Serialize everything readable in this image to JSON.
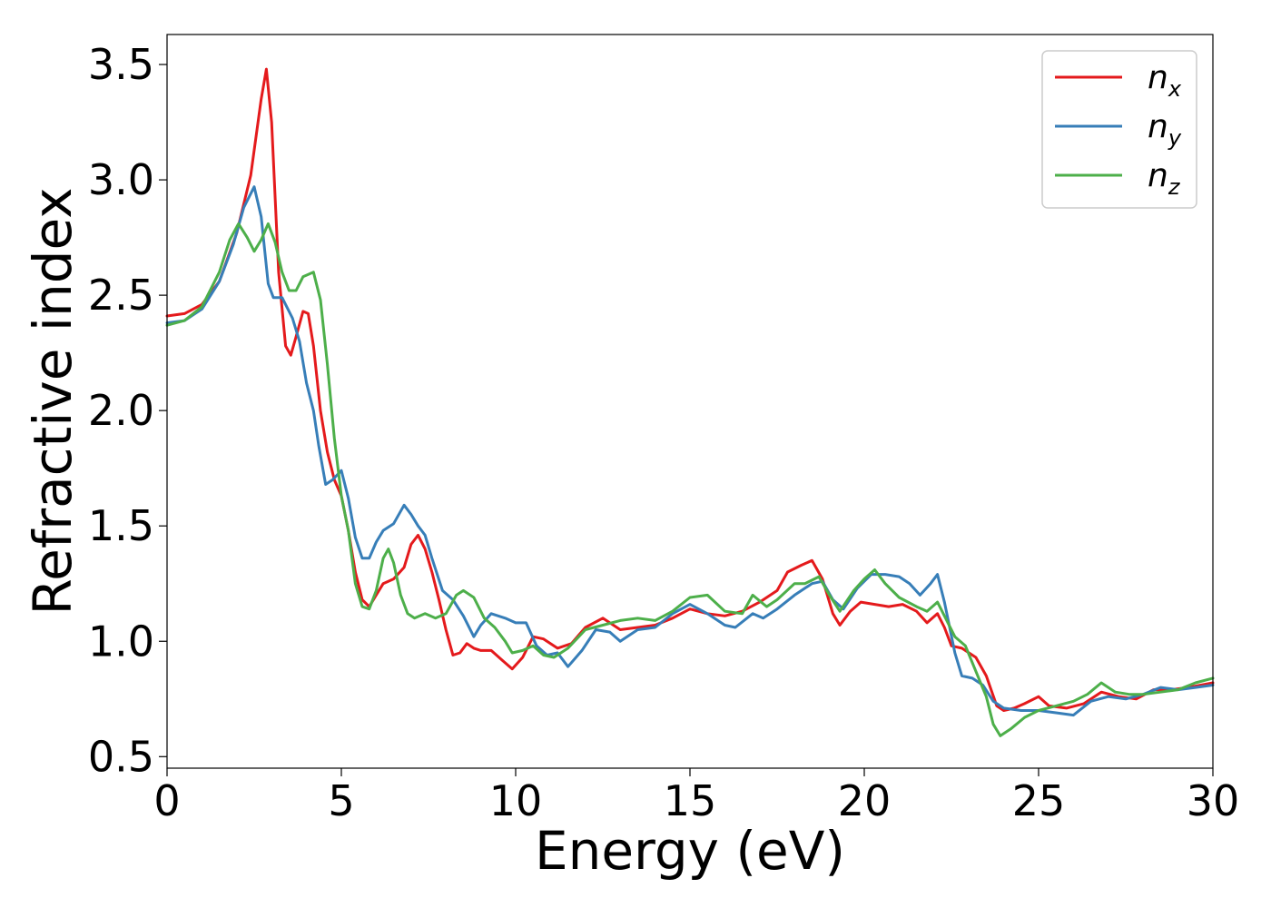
{
  "chart_data": {
    "type": "line",
    "xlabel": "Energy (eV)",
    "ylabel": "Refractive index",
    "xlim": [
      0,
      30
    ],
    "ylim": [
      0.45,
      3.63
    ],
    "x_ticks": [
      "0",
      "5",
      "10",
      "15",
      "20",
      "25",
      "30"
    ],
    "y_ticks": [
      "0.5",
      "1.0",
      "1.5",
      "2.0",
      "2.5",
      "3.0",
      "3.5"
    ],
    "grid": false,
    "legend_position": "top-right",
    "series": [
      {
        "name": "n",
        "subscript": "x",
        "color": "#e41a1c",
        "points": [
          [
            0,
            2.41
          ],
          [
            0.5,
            2.42
          ],
          [
            1.0,
            2.46
          ],
          [
            1.5,
            2.56
          ],
          [
            2.0,
            2.77
          ],
          [
            2.4,
            3.02
          ],
          [
            2.7,
            3.35
          ],
          [
            2.85,
            3.48
          ],
          [
            3.0,
            3.25
          ],
          [
            3.2,
            2.6
          ],
          [
            3.4,
            2.28
          ],
          [
            3.55,
            2.24
          ],
          [
            3.7,
            2.32
          ],
          [
            3.9,
            2.43
          ],
          [
            4.05,
            2.42
          ],
          [
            4.2,
            2.28
          ],
          [
            4.4,
            2.0
          ],
          [
            4.6,
            1.82
          ],
          [
            4.8,
            1.7
          ],
          [
            5.0,
            1.63
          ],
          [
            5.2,
            1.48
          ],
          [
            5.4,
            1.3
          ],
          [
            5.6,
            1.18
          ],
          [
            5.8,
            1.15
          ],
          [
            6.0,
            1.2
          ],
          [
            6.2,
            1.25
          ],
          [
            6.5,
            1.27
          ],
          [
            6.8,
            1.32
          ],
          [
            7.0,
            1.42
          ],
          [
            7.2,
            1.46
          ],
          [
            7.4,
            1.4
          ],
          [
            7.6,
            1.3
          ],
          [
            7.8,
            1.18
          ],
          [
            8.0,
            1.05
          ],
          [
            8.2,
            0.94
          ],
          [
            8.4,
            0.95
          ],
          [
            8.6,
            0.99
          ],
          [
            8.8,
            0.97
          ],
          [
            9.0,
            0.96
          ],
          [
            9.3,
            0.96
          ],
          [
            9.6,
            0.92
          ],
          [
            9.9,
            0.88
          ],
          [
            10.2,
            0.93
          ],
          [
            10.5,
            1.02
          ],
          [
            10.8,
            1.01
          ],
          [
            11.2,
            0.97
          ],
          [
            11.6,
            0.99
          ],
          [
            12.0,
            1.06
          ],
          [
            12.5,
            1.1
          ],
          [
            13.0,
            1.05
          ],
          [
            13.5,
            1.06
          ],
          [
            14.0,
            1.07
          ],
          [
            14.5,
            1.1
          ],
          [
            15.0,
            1.14
          ],
          [
            15.5,
            1.12
          ],
          [
            16.0,
            1.11
          ],
          [
            16.5,
            1.13
          ],
          [
            17.0,
            1.17
          ],
          [
            17.5,
            1.22
          ],
          [
            17.8,
            1.3
          ],
          [
            18.2,
            1.33
          ],
          [
            18.5,
            1.35
          ],
          [
            18.8,
            1.27
          ],
          [
            19.1,
            1.12
          ],
          [
            19.3,
            1.07
          ],
          [
            19.6,
            1.13
          ],
          [
            19.9,
            1.17
          ],
          [
            20.3,
            1.16
          ],
          [
            20.7,
            1.15
          ],
          [
            21.1,
            1.16
          ],
          [
            21.5,
            1.13
          ],
          [
            21.8,
            1.08
          ],
          [
            22.1,
            1.12
          ],
          [
            22.3,
            1.06
          ],
          [
            22.5,
            0.98
          ],
          [
            22.8,
            0.97
          ],
          [
            23.2,
            0.93
          ],
          [
            23.5,
            0.85
          ],
          [
            23.8,
            0.72
          ],
          [
            24.0,
            0.7
          ],
          [
            24.3,
            0.71
          ],
          [
            24.6,
            0.73
          ],
          [
            25.0,
            0.76
          ],
          [
            25.3,
            0.72
          ],
          [
            25.8,
            0.71
          ],
          [
            26.3,
            0.73
          ],
          [
            26.8,
            0.78
          ],
          [
            27.3,
            0.76
          ],
          [
            27.8,
            0.75
          ],
          [
            28.3,
            0.79
          ],
          [
            28.8,
            0.79
          ],
          [
            29.3,
            0.8
          ],
          [
            30.0,
            0.82
          ]
        ]
      },
      {
        "name": "n",
        "subscript": "y",
        "color": "#377eb8",
        "points": [
          [
            0,
            2.38
          ],
          [
            0.5,
            2.39
          ],
          [
            1.0,
            2.44
          ],
          [
            1.5,
            2.56
          ],
          [
            1.9,
            2.72
          ],
          [
            2.2,
            2.88
          ],
          [
            2.5,
            2.97
          ],
          [
            2.7,
            2.84
          ],
          [
            2.9,
            2.55
          ],
          [
            3.05,
            2.49
          ],
          [
            3.3,
            2.49
          ],
          [
            3.6,
            2.4
          ],
          [
            3.8,
            2.3
          ],
          [
            4.0,
            2.12
          ],
          [
            4.2,
            2.0
          ],
          [
            4.35,
            1.85
          ],
          [
            4.55,
            1.68
          ],
          [
            4.75,
            1.7
          ],
          [
            5.0,
            1.74
          ],
          [
            5.2,
            1.62
          ],
          [
            5.4,
            1.45
          ],
          [
            5.6,
            1.36
          ],
          [
            5.8,
            1.36
          ],
          [
            6.0,
            1.43
          ],
          [
            6.2,
            1.48
          ],
          [
            6.5,
            1.51
          ],
          [
            6.8,
            1.59
          ],
          [
            7.0,
            1.55
          ],
          [
            7.2,
            1.5
          ],
          [
            7.4,
            1.46
          ],
          [
            7.6,
            1.36
          ],
          [
            7.9,
            1.22
          ],
          [
            8.2,
            1.18
          ],
          [
            8.5,
            1.11
          ],
          [
            8.8,
            1.02
          ],
          [
            9.0,
            1.07
          ],
          [
            9.3,
            1.12
          ],
          [
            9.7,
            1.1
          ],
          [
            10.0,
            1.08
          ],
          [
            10.3,
            1.08
          ],
          [
            10.6,
            0.98
          ],
          [
            10.9,
            0.94
          ],
          [
            11.2,
            0.95
          ],
          [
            11.5,
            0.89
          ],
          [
            11.9,
            0.96
          ],
          [
            12.3,
            1.05
          ],
          [
            12.7,
            1.04
          ],
          [
            13.0,
            1.0
          ],
          [
            13.5,
            1.05
          ],
          [
            14.0,
            1.06
          ],
          [
            14.5,
            1.12
          ],
          [
            15.0,
            1.16
          ],
          [
            15.5,
            1.12
          ],
          [
            16.0,
            1.07
          ],
          [
            16.3,
            1.06
          ],
          [
            16.8,
            1.12
          ],
          [
            17.1,
            1.1
          ],
          [
            17.5,
            1.14
          ],
          [
            18.0,
            1.2
          ],
          [
            18.5,
            1.25
          ],
          [
            18.8,
            1.26
          ],
          [
            19.1,
            1.18
          ],
          [
            19.4,
            1.14
          ],
          [
            19.8,
            1.23
          ],
          [
            20.2,
            1.29
          ],
          [
            20.6,
            1.29
          ],
          [
            21.0,
            1.28
          ],
          [
            21.3,
            1.25
          ],
          [
            21.6,
            1.2
          ],
          [
            21.9,
            1.25
          ],
          [
            22.1,
            1.29
          ],
          [
            22.3,
            1.17
          ],
          [
            22.6,
            0.95
          ],
          [
            22.8,
            0.85
          ],
          [
            23.1,
            0.84
          ],
          [
            23.4,
            0.81
          ],
          [
            23.7,
            0.74
          ],
          [
            24.0,
            0.71
          ],
          [
            24.5,
            0.7
          ],
          [
            25.0,
            0.7
          ],
          [
            25.5,
            0.69
          ],
          [
            26.0,
            0.68
          ],
          [
            26.5,
            0.74
          ],
          [
            27.0,
            0.76
          ],
          [
            27.5,
            0.75
          ],
          [
            28.0,
            0.77
          ],
          [
            28.5,
            0.8
          ],
          [
            29.0,
            0.79
          ],
          [
            29.5,
            0.8
          ],
          [
            30.0,
            0.81
          ]
        ]
      },
      {
        "name": "n",
        "subscript": "z",
        "color": "#4daf4a",
        "points": [
          [
            0,
            2.37
          ],
          [
            0.5,
            2.39
          ],
          [
            1.0,
            2.45
          ],
          [
            1.5,
            2.6
          ],
          [
            1.8,
            2.74
          ],
          [
            2.05,
            2.81
          ],
          [
            2.3,
            2.75
          ],
          [
            2.5,
            2.69
          ],
          [
            2.7,
            2.74
          ],
          [
            2.9,
            2.81
          ],
          [
            3.1,
            2.73
          ],
          [
            3.3,
            2.6
          ],
          [
            3.5,
            2.52
          ],
          [
            3.7,
            2.52
          ],
          [
            3.9,
            2.58
          ],
          [
            4.2,
            2.6
          ],
          [
            4.4,
            2.48
          ],
          [
            4.6,
            2.2
          ],
          [
            4.8,
            1.88
          ],
          [
            5.0,
            1.63
          ],
          [
            5.2,
            1.48
          ],
          [
            5.4,
            1.25
          ],
          [
            5.6,
            1.15
          ],
          [
            5.8,
            1.14
          ],
          [
            6.0,
            1.22
          ],
          [
            6.2,
            1.36
          ],
          [
            6.35,
            1.4
          ],
          [
            6.5,
            1.34
          ],
          [
            6.7,
            1.2
          ],
          [
            6.9,
            1.12
          ],
          [
            7.1,
            1.1
          ],
          [
            7.4,
            1.12
          ],
          [
            7.7,
            1.1
          ],
          [
            8.0,
            1.12
          ],
          [
            8.3,
            1.2
          ],
          [
            8.5,
            1.22
          ],
          [
            8.8,
            1.19
          ],
          [
            9.1,
            1.1
          ],
          [
            9.4,
            1.06
          ],
          [
            9.7,
            1.0
          ],
          [
            9.9,
            0.95
          ],
          [
            10.2,
            0.96
          ],
          [
            10.5,
            0.98
          ],
          [
            10.8,
            0.94
          ],
          [
            11.1,
            0.93
          ],
          [
            11.5,
            0.97
          ],
          [
            12.0,
            1.05
          ],
          [
            12.5,
            1.07
          ],
          [
            13.0,
            1.09
          ],
          [
            13.5,
            1.1
          ],
          [
            14.0,
            1.09
          ],
          [
            14.5,
            1.13
          ],
          [
            15.0,
            1.19
          ],
          [
            15.5,
            1.2
          ],
          [
            16.0,
            1.13
          ],
          [
            16.5,
            1.12
          ],
          [
            16.8,
            1.2
          ],
          [
            17.2,
            1.15
          ],
          [
            17.5,
            1.18
          ],
          [
            18.0,
            1.25
          ],
          [
            18.3,
            1.25
          ],
          [
            18.7,
            1.28
          ],
          [
            19.0,
            1.2
          ],
          [
            19.3,
            1.13
          ],
          [
            19.7,
            1.22
          ],
          [
            20.0,
            1.27
          ],
          [
            20.3,
            1.31
          ],
          [
            20.6,
            1.25
          ],
          [
            21.0,
            1.19
          ],
          [
            21.5,
            1.15
          ],
          [
            21.8,
            1.13
          ],
          [
            22.1,
            1.17
          ],
          [
            22.3,
            1.11
          ],
          [
            22.6,
            1.02
          ],
          [
            22.9,
            0.98
          ],
          [
            23.2,
            0.87
          ],
          [
            23.5,
            0.76
          ],
          [
            23.7,
            0.64
          ],
          [
            23.9,
            0.59
          ],
          [
            24.2,
            0.62
          ],
          [
            24.6,
            0.67
          ],
          [
            25.0,
            0.7
          ],
          [
            25.5,
            0.72
          ],
          [
            26.0,
            0.74
          ],
          [
            26.4,
            0.77
          ],
          [
            26.8,
            0.82
          ],
          [
            27.2,
            0.78
          ],
          [
            27.6,
            0.77
          ],
          [
            28.0,
            0.77
          ],
          [
            28.5,
            0.78
          ],
          [
            29.0,
            0.79
          ],
          [
            29.5,
            0.82
          ],
          [
            30.0,
            0.84
          ]
        ]
      }
    ]
  }
}
